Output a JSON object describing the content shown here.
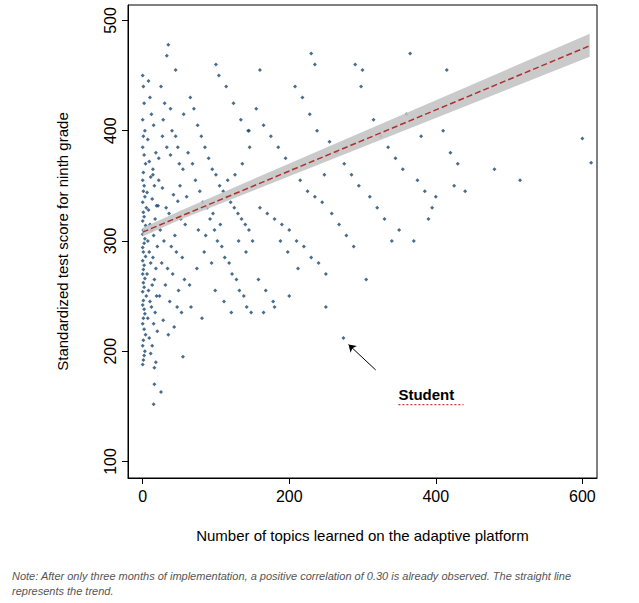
{
  "chart_data": {
    "type": "scatter",
    "x_label": "Number of topics learned on the adaptive platform",
    "y_label": "Standardized test score for ninth grade",
    "xlim": [
      -20,
      620
    ],
    "xticks": [
      0,
      200,
      400,
      600
    ],
    "ylim": [
      85,
      514
    ],
    "yticks": [
      100,
      200,
      300,
      400,
      500
    ],
    "grid": false,
    "color": "#1a476f",
    "marker": "diamond",
    "x": [
      0,
      1,
      2,
      0,
      3,
      1,
      0,
      2,
      4,
      1,
      0,
      2,
      1,
      3,
      0,
      5,
      1,
      2,
      0,
      4,
      1,
      0,
      3,
      2,
      0,
      1,
      4,
      0,
      2,
      1,
      0,
      3,
      1,
      2,
      0,
      5,
      1,
      0,
      2,
      3,
      1,
      0,
      2,
      4,
      1,
      0,
      3,
      2,
      1,
      0,
      8,
      10,
      12,
      15,
      7,
      18,
      9,
      14,
      11,
      16,
      6,
      13,
      19,
      8,
      17,
      10,
      12,
      15,
      7,
      20,
      9,
      14,
      11,
      18,
      6,
      16,
      13,
      8,
      19,
      10,
      12,
      17,
      7,
      15,
      20,
      9,
      13,
      11,
      18,
      16,
      15,
      16,
      25,
      22,
      14,
      25,
      30,
      35,
      28,
      40,
      45,
      33,
      38,
      50,
      55,
      22,
      27,
      42,
      48,
      32,
      36,
      52,
      58,
      24,
      44,
      29,
      39,
      46,
      54,
      26,
      34,
      41,
      57,
      31,
      49,
      23,
      37,
      47,
      53,
      28,
      43,
      35,
      51,
      60,
      21,
      33,
      45,
      38,
      56,
      27,
      48,
      65,
      70,
      75,
      80,
      85,
      90,
      95,
      100,
      105,
      110,
      115,
      120,
      125,
      130,
      135,
      140,
      145,
      150,
      62,
      68,
      72,
      78,
      82,
      88,
      92,
      98,
      102,
      108,
      112,
      118,
      122,
      128,
      132,
      138,
      142,
      148,
      64,
      74,
      84,
      94,
      104,
      114,
      124,
      134,
      144,
      76,
      86,
      96,
      106,
      116,
      126,
      136,
      146,
      66,
      81,
      99,
      111,
      121,
      131,
      141,
      55,
      145,
      100,
      160,
      155,
      165,
      175,
      185,
      195,
      205,
      215,
      225,
      235,
      245,
      160,
      170,
      180,
      190,
      200,
      210,
      220,
      230,
      240,
      250,
      255,
      265,
      275,
      285,
      295,
      158,
      168,
      178,
      188,
      198,
      208,
      218,
      228,
      238,
      248,
      258,
      268,
      278,
      288,
      298,
      180,
      230,
      235,
      250,
      274,
      290,
      300,
      165,
      200,
      212,
      305,
      315,
      325,
      335,
      345,
      355,
      365,
      375,
      385,
      395,
      310,
      330,
      350,
      370,
      390,
      410,
      420,
      430,
      425,
      415,
      360,
      380,
      400,
      440,
      340,
      320,
      515,
      600,
      612,
      480
    ],
    "values": [
      450,
      440,
      425,
      410,
      400,
      395,
      385,
      378,
      370,
      362,
      355,
      350,
      345,
      340,
      335,
      330,
      326,
      322,
      318,
      314,
      310,
      306,
      302,
      298,
      294,
      290,
      286,
      282,
      278,
      274,
      270,
      266,
      262,
      258,
      254,
      250,
      246,
      242,
      238,
      234,
      230,
      225,
      220,
      215,
      210,
      205,
      200,
      196,
      192,
      188,
      445,
      430,
      415,
      405,
      392,
      380,
      372,
      365,
      358,
      350,
      344,
      338,
      332,
      328,
      320,
      315,
      310,
      305,
      300,
      295,
      290,
      285,
      280,
      275,
      270,
      265,
      260,
      255,
      250,
      245,
      240,
      235,
      230,
      225,
      218,
      212,
      205,
      198,
      190,
      185,
      152,
      170,
      163,
      375,
      360,
      440,
      425,
      478,
      410,
      400,
      395,
      385,
      378,
      370,
      365,
      355,
      348,
      342,
      336,
      330,
      325,
      320,
      315,
      310,
      305,
      300,
      295,
      290,
      285,
      280,
      275,
      270,
      265,
      260,
      255,
      250,
      245,
      240,
      235,
      228,
      222,
      215,
      350,
      340,
      332,
      468,
      455,
      420,
      415,
      395,
      385,
      430,
      420,
      405,
      395,
      385,
      375,
      365,
      360,
      350,
      345,
      340,
      335,
      330,
      325,
      320,
      315,
      310,
      300,
      380,
      370,
      355,
      345,
      335,
      330,
      320,
      310,
      300,
      295,
      285,
      280,
      270,
      265,
      255,
      250,
      240,
      235,
      260,
      275,
      290,
      280,
      450,
      440,
      425,
      410,
      400,
      310,
      305,
      325,
      315,
      355,
      360,
      370,
      385,
      240,
      230,
      255,
      245,
      235,
      300,
      290,
      195,
      400,
      460,
      455,
      420,
      405,
      395,
      385,
      375,
      365,
      355,
      345,
      340,
      335,
      330,
      325,
      320,
      315,
      310,
      300,
      295,
      285,
      280,
      270,
      390,
      380,
      370,
      360,
      350,
      265,
      255,
      245,
      300,
      290,
      440,
      430,
      415,
      400,
      360,
      325,
      315,
      305,
      295,
      440,
      240,
      470,
      460,
      240,
      212,
      460,
      455,
      235,
      250,
      275,
      265,
      410,
      395,
      385,
      375,
      365,
      470,
      355,
      345,
      330,
      340,
      320,
      310,
      300,
      320,
      400,
      380,
      370,
      350,
      455,
      415,
      395,
      340,
      345,
      300,
      330,
      355,
      393,
      371,
      365
    ],
    "trend": {
      "x": [
        0,
        610
      ],
      "values": [
        308,
        477
      ],
      "color": "#b03030",
      "line_style": "dashed"
    },
    "trend_band": {
      "x": [
        0,
        50,
        610
      ],
      "lower": [
        304,
        319,
        467
      ],
      "upper": [
        312,
        327,
        488
      ],
      "color": "#c4c4c4"
    },
    "annotations": [
      {
        "text": "Student",
        "x": 349,
        "y": 161,
        "arrow_from": [
          318,
          183
        ],
        "arrow_to": [
          281,
          206
        ],
        "color": "#c00000"
      }
    ],
    "note": "Note: After only three months of implementation, a positive correlation of 0.30 is already observed. The straight line represents the trend."
  }
}
